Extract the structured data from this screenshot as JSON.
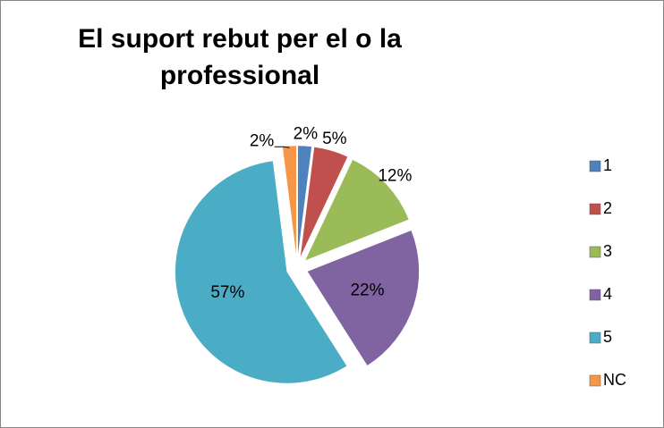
{
  "chart_data": {
    "type": "pie",
    "title": [
      "El suport rebut per el o la",
      "professional"
    ],
    "categories": [
      "1",
      "2",
      "3",
      "4",
      "5",
      "NC"
    ],
    "values": [
      2,
      5,
      12,
      22,
      57,
      2
    ],
    "value_labels": [
      "2%",
      "5%",
      "12%",
      "22%",
      "57%",
      "2%"
    ],
    "colors": [
      "#4f81bd",
      "#c0504d",
      "#9bbb59",
      "#8064a2",
      "#4bacc6",
      "#f79646"
    ],
    "legend": "right"
  }
}
